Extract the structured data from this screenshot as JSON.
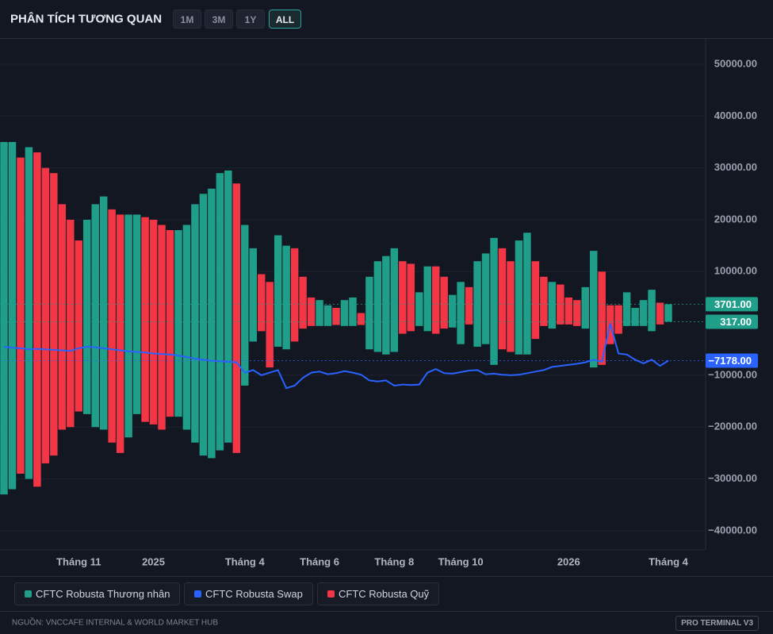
{
  "header": {
    "title": "PHÂN TÍCH TƯƠNG QUAN",
    "ranges": [
      "1M",
      "3M",
      "1Y",
      "ALL"
    ],
    "active_range": "ALL"
  },
  "chart_data": {
    "type": "bar",
    "categories": [
      null,
      null,
      null,
      null,
      null,
      null,
      null,
      null,
      null,
      "Tháng 11",
      null,
      null,
      null,
      null,
      null,
      null,
      null,
      null,
      "2025",
      null,
      null,
      null,
      null,
      null,
      null,
      null,
      null,
      null,
      null,
      "Tháng 4",
      null,
      null,
      null,
      null,
      null,
      null,
      null,
      null,
      "Tháng 6",
      null,
      null,
      null,
      null,
      null,
      null,
      null,
      null,
      "Tháng 8",
      null,
      null,
      null,
      null,
      null,
      null,
      null,
      "Tháng 10",
      null,
      null,
      null,
      null,
      null,
      null,
      null,
      null,
      null,
      null,
      null,
      null,
      "2026",
      null,
      null,
      null,
      null,
      null,
      null,
      null,
      null,
      null,
      null,
      null,
      "Tháng 4"
    ],
    "series": [
      {
        "name": "CFTC Robusta Thương nhân",
        "type": "bar",
        "color": "#1f9e89",
        "long": [
          35000,
          35000,
          null,
          34000,
          null,
          null,
          null,
          null,
          null,
          null,
          20000,
          23000,
          24500,
          null,
          null,
          21000,
          21000,
          null,
          null,
          null,
          null,
          18000,
          19000,
          23000,
          25000,
          26000,
          29000,
          29500,
          null,
          19000,
          14500,
          null,
          null,
          17000,
          15000,
          null,
          null,
          null,
          4500,
          3500,
          null,
          4500,
          5000,
          null,
          9000,
          12000,
          13000,
          14500,
          null,
          null,
          6000,
          11000,
          null,
          null,
          5500,
          8000,
          null,
          12000,
          13500,
          16500,
          null,
          null,
          16000,
          17500,
          null,
          null,
          8000,
          null,
          null,
          null,
          7000,
          14000,
          null,
          null,
          null,
          6000,
          3000,
          4500,
          6500,
          null,
          3701
        ],
        "short": [
          -33000,
          -32000,
          null,
          -30000,
          null,
          null,
          null,
          null,
          null,
          null,
          -17500,
          -20000,
          -20500,
          null,
          null,
          -22000,
          -17500,
          null,
          null,
          null,
          null,
          -18000,
          -20500,
          -23000,
          -25500,
          -26000,
          -24500,
          -23000,
          null,
          -12000,
          -3500,
          null,
          null,
          -4500,
          -5000,
          null,
          null,
          null,
          -500,
          -500,
          null,
          -500,
          -500,
          null,
          -5000,
          -5500,
          -6000,
          -5500,
          null,
          null,
          -500,
          -1500,
          null,
          null,
          -800,
          -4000,
          null,
          -4500,
          -4000,
          -8000,
          null,
          null,
          -6000,
          -6000,
          null,
          null,
          -1000,
          null,
          null,
          null,
          -1000,
          -8500,
          null,
          null,
          null,
          -500,
          -500,
          -500,
          -1500,
          null,
          317
        ]
      },
      {
        "name": "CFTC Robusta Swap",
        "type": "line",
        "color": "#2962ff",
        "values": [
          -4500,
          -4700,
          -4800,
          -5000,
          -4900,
          -5000,
          -5100,
          -5200,
          -5300,
          -4800,
          -4500,
          -4600,
          -4800,
          -5000,
          -5200,
          -5400,
          -5500,
          -5600,
          -5800,
          -5900,
          -6000,
          -6200,
          -6500,
          -6800,
          -7000,
          -7200,
          -7300,
          -7400,
          -7500,
          -9500,
          -9000,
          -10000,
          -9500,
          -9000,
          -12500,
          -12000,
          -10500,
          -9500,
          -9300,
          -9800,
          -9600,
          -9200,
          -9500,
          -9900,
          -11000,
          -11200,
          -11000,
          -12000,
          -11800,
          -11900,
          -11800,
          -9500,
          -8800,
          -9600,
          -9700,
          -9400,
          -9100,
          -9000,
          -9800,
          -9700,
          -9900,
          -10000,
          -9900,
          -9600,
          -9300,
          -9000,
          -8400,
          -8200,
          -8000,
          -7800,
          -7500,
          -7000,
          -7400,
          0,
          -5800,
          -6000,
          -7000,
          -7700,
          -7000,
          -8200,
          -7178
        ]
      },
      {
        "name": "CFTC Robusta Quỹ",
        "type": "bar",
        "color": "#f23645",
        "long": [
          null,
          null,
          32000,
          null,
          33000,
          30000,
          29000,
          23000,
          20000,
          16000,
          null,
          null,
          null,
          22000,
          21000,
          null,
          null,
          20500,
          20000,
          19000,
          18000,
          null,
          null,
          null,
          null,
          null,
          null,
          null,
          27000,
          null,
          null,
          9500,
          8000,
          null,
          null,
          14500,
          9000,
          5000,
          null,
          null,
          3000,
          null,
          null,
          2000,
          null,
          null,
          null,
          null,
          12000,
          11500,
          null,
          null,
          11000,
          9000,
          null,
          null,
          7000,
          null,
          null,
          null,
          14500,
          12000,
          null,
          null,
          12000,
          9000,
          null,
          7500,
          5000,
          4500,
          null,
          null,
          10000,
          3500,
          3500,
          null,
          null,
          null,
          null,
          4000,
          null
        ],
        "short": [
          null,
          null,
          -29000,
          null,
          -31500,
          -27000,
          -25500,
          -20500,
          -20000,
          -17000,
          null,
          null,
          null,
          -23000,
          -25000,
          null,
          null,
          -19000,
          -19500,
          -20500,
          -18000,
          null,
          null,
          null,
          null,
          null,
          null,
          null,
          -25000,
          null,
          null,
          -1500,
          -8500,
          null,
          null,
          -3500,
          -1000,
          -500,
          null,
          null,
          -300,
          null,
          null,
          -300,
          null,
          null,
          null,
          null,
          -2000,
          -1500,
          null,
          null,
          -2000,
          -1000,
          null,
          null,
          -200,
          null,
          null,
          null,
          -5000,
          -5500,
          null,
          null,
          -3000,
          -500,
          null,
          -200,
          -200,
          -500,
          null,
          null,
          -8000,
          -4000,
          -2000,
          null,
          null,
          null,
          null,
          -200,
          null
        ]
      }
    ],
    "ylim": [
      -43700,
      54900
    ],
    "yticks": [
      {
        "value": 50000,
        "label": "50000.00"
      },
      {
        "value": 40000,
        "label": "40000.00"
      },
      {
        "value": 30000,
        "label": "30000.00"
      },
      {
        "value": 20000,
        "label": "20000.00"
      },
      {
        "value": 10000,
        "label": "10000.00"
      },
      {
        "value": -10000,
        "label": "−10000.00"
      },
      {
        "value": -20000,
        "label": "−20000.00"
      },
      {
        "value": -30000,
        "label": "−30000.00"
      },
      {
        "value": -40000,
        "label": "−40000.00"
      }
    ],
    "grid": true,
    "last_labels": [
      {
        "value": 3701,
        "label": "3701.00",
        "color": "#1f9e89"
      },
      {
        "value": 317,
        "label": "317.00",
        "color": "#1f9e89"
      },
      {
        "value": -7178,
        "label": "−7178.00",
        "color": "#2962ff"
      }
    ]
  },
  "footer": {
    "source": "NGUỒN: VNCCAFE INTERNAL & WORLD MARKET HUB",
    "badge": "PRO TERMINAL V3"
  }
}
